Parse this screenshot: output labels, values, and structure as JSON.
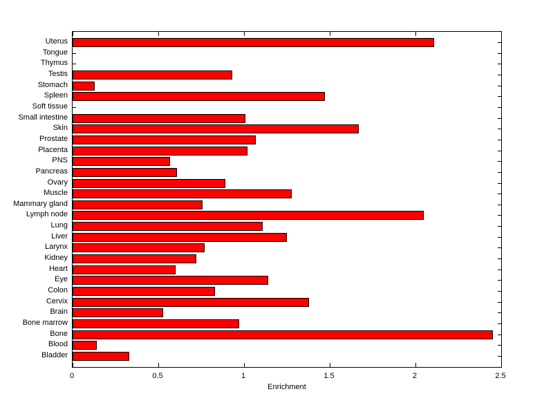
{
  "chart_data": {
    "type": "bar",
    "orientation": "horizontal",
    "title": "",
    "xlabel": "Enrichment",
    "ylabel": "",
    "xlim": [
      0,
      2.5
    ],
    "xticks": [
      0,
      0.5,
      1,
      1.5,
      2,
      2.5
    ],
    "xtick_labels": [
      "0",
      "0.5",
      "1",
      "1.5",
      "2",
      "2.5"
    ],
    "grid": false,
    "legend": null,
    "background": "#FFFFFF",
    "text_color": "#000000",
    "axis_color": "#000000",
    "bar_color": "#FF0000",
    "bar_edge_color": "#000000",
    "categories": [
      "Uterus",
      "Tongue",
      "Thymus",
      "Testis",
      "Stomach",
      "Spleen",
      "Soft tissue",
      "Small intestine",
      "Skin",
      "Prostate",
      "Placenta",
      "PNS",
      "Pancreas",
      "Ovary",
      "Muscle",
      "Mammary gland",
      "Lymph node",
      "Lung",
      "Liver",
      "Larynx",
      "Kidney",
      "Heart",
      "Eye",
      "Colon",
      "Cervix",
      "Brain",
      "Bone marrow",
      "Bone",
      "Blood",
      "Bladder"
    ],
    "values": [
      2.11,
      0,
      0,
      0.93,
      0.13,
      1.47,
      0,
      1.01,
      1.67,
      1.07,
      1.02,
      0.57,
      0.61,
      0.89,
      1.28,
      0.76,
      2.05,
      1.11,
      1.25,
      0.77,
      0.72,
      0.6,
      1.14,
      0.83,
      1.38,
      0.53,
      0.97,
      2.45,
      0.14,
      0.33
    ]
  }
}
